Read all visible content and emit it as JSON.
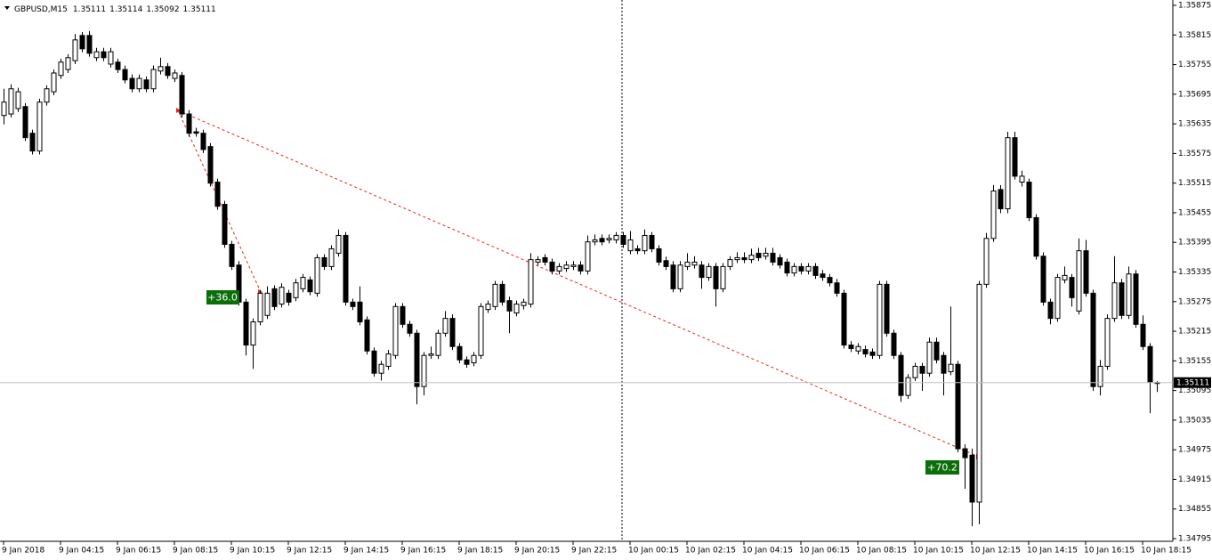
{
  "chart_data": {
    "type": "candlestick",
    "symbol": "GBPUSD,M15",
    "categories": [
      "9 Jan 2018",
      null,
      null,
      null,
      null,
      null,
      null,
      null,
      "9 Jan 04:15",
      null,
      null,
      null,
      null,
      null,
      null,
      null,
      "9 Jan 06:15",
      null,
      null,
      null,
      null,
      null,
      null,
      null,
      "9 Jan 08:15",
      null,
      null,
      null,
      null,
      null,
      null,
      null,
      "9 Jan 10:15",
      null,
      null,
      null,
      null,
      null,
      null,
      null,
      "9 Jan 12:15",
      null,
      null,
      null,
      null,
      null,
      null,
      null,
      "9 Jan 14:15",
      null,
      null,
      null,
      null,
      null,
      null,
      null,
      "9 Jan 16:15",
      null,
      null,
      null,
      null,
      null,
      null,
      null,
      "9 Jan 18:15",
      null,
      null,
      null,
      null,
      null,
      null,
      null,
      "9 Jan 20:15",
      null,
      null,
      null,
      null,
      null,
      null,
      null,
      "9 Jan 22:15",
      null,
      null,
      null,
      null,
      null,
      null,
      null,
      "10 Jan 00:15",
      null,
      null,
      null,
      null,
      null,
      null,
      null,
      "10 Jan 02:15",
      null,
      null,
      null,
      null,
      null,
      null,
      null,
      "10 Jan 04:15",
      null,
      null,
      null,
      null,
      null,
      null,
      null,
      "10 Jan 06:15",
      null,
      null,
      null,
      null,
      null,
      null,
      null,
      "10 Jan 08:15",
      null,
      null,
      null,
      null,
      null,
      null,
      null,
      "10 Jan 10:15",
      null,
      null,
      null,
      null,
      null,
      null,
      null,
      "10 Jan 12:15",
      null,
      null,
      null,
      null,
      null,
      null,
      null,
      "10 Jan 14:15",
      null,
      null,
      null,
      null,
      null,
      null,
      null,
      "10 Jan 16:15",
      null,
      null,
      null,
      null,
      null,
      null,
      null,
      "10 Jan 18:15",
      null,
      null
    ],
    "open": [
      1.35652,
      1.35655,
      1.35666,
      1.3567,
      1.35616,
      1.3558,
      1.35679,
      1.357,
      1.35733,
      1.35745,
      1.35763,
      1.35814,
      1.35814,
      1.35769,
      1.35781,
      1.35756,
      1.3576,
      1.35745,
      1.35727,
      1.35706,
      1.35724,
      1.35706,
      1.35742,
      1.35751,
      1.35727,
      1.35733,
      1.35655,
      1.35619,
      1.35616,
      1.35589,
      1.35517,
      1.35472,
      1.35391,
      1.35349,
      1.35274,
      1.35187,
      1.35234,
      1.35247,
      1.35301,
      1.3527,
      1.35292,
      1.35283,
      1.35301,
      1.35319,
      1.35292,
      1.35364,
      1.35346,
      1.35373,
      1.35409,
      1.35274,
      1.35274,
      1.35238,
      1.35175,
      1.3513,
      1.35144,
      1.35166,
      1.35265,
      1.35229,
      1.35211,
      1.35103,
      1.35166,
      1.35166,
      1.35211,
      1.35241,
      1.35184,
      1.35157,
      1.35151,
      1.35166,
      1.35259,
      1.35265,
      1.3531,
      1.35277,
      1.35252,
      1.35267,
      1.3527,
      1.35355,
      1.35364,
      1.35355,
      1.35337,
      1.35342,
      1.35346,
      1.35349,
      1.35337,
      1.35396,
      1.35403,
      1.354,
      1.354,
      1.35409,
      1.35378,
      1.35382,
      1.35378,
      1.35409,
      1.35382,
      1.35358,
      1.35349,
      1.35301,
      1.35346,
      1.35349,
      1.35349,
      1.35324,
      1.35346,
      1.35301,
      1.35346,
      1.3536,
      1.35364,
      1.3536,
      1.35373,
      1.35367,
      1.35373,
      1.35364,
      1.35355,
      1.35333,
      1.35346,
      1.35337,
      1.35346,
      1.35331,
      1.35324,
      1.35313,
      1.35292,
      1.35187,
      1.35175,
      1.35178,
      1.35173,
      1.35166,
      1.3531,
      1.35211,
      1.35166,
      1.35085,
      1.35121,
      1.35144,
      1.3513,
      1.35193,
      1.35166,
      1.35133,
      1.35148,
      1.34977,
      1.34964,
      1.34869,
      1.3531,
      1.35403,
      1.35502,
      1.35463,
      1.35607,
      1.35517,
      1.35517,
      1.35445,
      1.35367,
      1.35274,
      1.35241,
      1.35319,
      1.35324,
      1.35256,
      1.35378,
      1.35292,
      1.35103,
      1.35144,
      1.35241,
      1.35313,
      1.35247,
      1.35331,
      1.35229,
      1.35184,
      1.35111
    ],
    "high": [
      1.35706,
      1.35715,
      1.35708,
      1.35677,
      1.35623,
      1.35686,
      1.35713,
      1.35745,
      1.35767,
      1.35776,
      1.35817,
      1.35821,
      1.35823,
      1.35789,
      1.35789,
      1.35789,
      1.35767,
      1.35753,
      1.35735,
      1.35735,
      1.35731,
      1.35753,
      1.35769,
      1.35758,
      1.35745,
      1.3574,
      1.35663,
      1.35627,
      1.35623,
      1.35596,
      1.35524,
      1.35479,
      1.35398,
      1.35357,
      1.35281,
      1.35241,
      1.35299,
      1.35306,
      1.35308,
      1.35312,
      1.35299,
      1.35321,
      1.35331,
      1.35326,
      1.35371,
      1.35371,
      1.35389,
      1.35421,
      1.35416,
      1.35281,
      1.35306,
      1.35245,
      1.35182,
      1.35155,
      1.35177,
      1.35272,
      1.35272,
      1.35236,
      1.35218,
      1.35173,
      1.35184,
      1.35218,
      1.35256,
      1.35249,
      1.35191,
      1.35164,
      1.35173,
      1.35272,
      1.35277,
      1.35317,
      1.35317,
      1.35285,
      1.35277,
      1.35281,
      1.35373,
      1.35367,
      1.35371,
      1.35362,
      1.35353,
      1.35357,
      1.35357,
      1.35357,
      1.35409,
      1.35411,
      1.35411,
      1.35411,
      1.35416,
      1.35416,
      1.35418,
      1.35389,
      1.35421,
      1.35416,
      1.35389,
      1.35366,
      1.35357,
      1.35357,
      1.35373,
      1.35367,
      1.35357,
      1.35353,
      1.35353,
      1.35353,
      1.35367,
      1.35375,
      1.35375,
      1.35382,
      1.35384,
      1.35384,
      1.35384,
      1.35371,
      1.35362,
      1.35353,
      1.35353,
      1.35353,
      1.35353,
      1.35339,
      1.35331,
      1.35321,
      1.35299,
      1.35195,
      1.35191,
      1.35186,
      1.3518,
      1.35317,
      1.35317,
      1.35218,
      1.35173,
      1.35128,
      1.35151,
      1.35151,
      1.35202,
      1.35202,
      1.35173,
      1.35265,
      1.35155,
      1.34986,
      1.34977,
      1.35317,
      1.35414,
      1.35511,
      1.35511,
      1.35619,
      1.35619,
      1.3554,
      1.35524,
      1.35452,
      1.35375,
      1.35281,
      1.35331,
      1.35346,
      1.35331,
      1.35403,
      1.354,
      1.35299,
      1.35157,
      1.35249,
      1.35367,
      1.35321,
      1.35346,
      1.35339,
      1.35247,
      1.35191,
      1.35114
    ],
    "low": [
      1.35634,
      1.35648,
      1.35659,
      1.356,
      1.35573,
      1.35573,
      1.35672,
      1.35693,
      1.35726,
      1.35738,
      1.35756,
      1.3578,
      1.35771,
      1.35762,
      1.35762,
      1.35749,
      1.35738,
      1.35717,
      1.35699,
      1.35699,
      1.35699,
      1.35699,
      1.35735,
      1.35726,
      1.3572,
      1.35648,
      1.35609,
      1.35609,
      1.35576,
      1.35508,
      1.35461,
      1.35384,
      1.35339,
      1.35267,
      1.35166,
      1.35139,
      1.35227,
      1.3524,
      1.35258,
      1.35263,
      1.35267,
      1.35276,
      1.35294,
      1.35288,
      1.35285,
      1.35339,
      1.35339,
      1.35366,
      1.35267,
      1.35258,
      1.35227,
      1.35168,
      1.35123,
      1.35115,
      1.35137,
      1.35159,
      1.35222,
      1.35204,
      1.35067,
      1.35085,
      1.35159,
      1.35159,
      1.35204,
      1.35177,
      1.3515,
      1.35141,
      1.35144,
      1.35159,
      1.35252,
      1.35258,
      1.35267,
      1.35211,
      1.35245,
      1.35259,
      1.35263,
      1.35348,
      1.35348,
      1.3533,
      1.3533,
      1.35335,
      1.35339,
      1.3533,
      1.3533,
      1.35389,
      1.35389,
      1.35393,
      1.35393,
      1.35384,
      1.35371,
      1.35371,
      1.35371,
      1.35375,
      1.35348,
      1.35339,
      1.35294,
      1.35294,
      1.35339,
      1.35342,
      1.35301,
      1.35317,
      1.35265,
      1.35294,
      1.35339,
      1.35353,
      1.35353,
      1.35353,
      1.35357,
      1.3536,
      1.35348,
      1.35342,
      1.35326,
      1.35326,
      1.3533,
      1.3533,
      1.35321,
      1.35317,
      1.35306,
      1.35285,
      1.3518,
      1.35173,
      1.35168,
      1.35162,
      1.35159,
      1.35159,
      1.35204,
      1.35159,
      1.35072,
      1.35078,
      1.35114,
      1.35094,
      1.35123,
      1.3515,
      1.35085,
      1.35126,
      1.3497,
      1.34896,
      1.3482,
      1.34824,
      1.35303,
      1.35396,
      1.35454,
      1.35454,
      1.35522,
      1.35508,
      1.35438,
      1.3536,
      1.35267,
      1.35229,
      1.35234,
      1.35312,
      1.35265,
      1.35249,
      1.35285,
      1.35094,
      1.35085,
      1.35137,
      1.35234,
      1.3524,
      1.3524,
      1.35222,
      1.35177,
      1.35049,
      1.35092
    ],
    "close": [
      1.35679,
      1.35706,
      1.357,
      1.35607,
      1.3558,
      1.35679,
      1.35706,
      1.35738,
      1.3576,
      1.35769,
      1.35805,
      1.35787,
      1.35778,
      1.35781,
      1.35769,
      1.35781,
      1.35745,
      1.35724,
      1.35706,
      1.35727,
      1.35706,
      1.35745,
      1.35751,
      1.35733,
      1.35738,
      1.35655,
      1.35616,
      1.35616,
      1.35583,
      1.35515,
      1.35468,
      1.35391,
      1.35346,
      1.35274,
      1.35187,
      1.35234,
      1.35292,
      1.35292,
      1.35265,
      1.35304,
      1.35274,
      1.35313,
      1.35324,
      1.35295,
      1.35364,
      1.35346,
      1.35382,
      1.35409,
      1.35274,
      1.35265,
      1.35234,
      1.35175,
      1.3513,
      1.35148,
      1.35169,
      1.35265,
      1.35229,
      1.35211,
      1.35103,
      1.35166,
      1.35169,
      1.35211,
      1.35241,
      1.35184,
      1.35157,
      1.35148,
      1.35166,
      1.35265,
      1.3527,
      1.3531,
      1.35274,
      1.35256,
      1.3527,
      1.35274,
      1.3536,
      1.3536,
      1.35355,
      1.35337,
      1.35346,
      1.35349,
      1.35349,
      1.35337,
      1.35396,
      1.354,
      1.35396,
      1.35403,
      1.35409,
      1.35391,
      1.354,
      1.35378,
      1.35409,
      1.35382,
      1.35355,
      1.35346,
      1.35301,
      1.35349,
      1.35355,
      1.35355,
      1.35324,
      1.35346,
      1.35301,
      1.35346,
      1.3536,
      1.35364,
      1.3536,
      1.35369,
      1.35364,
      1.35373,
      1.35355,
      1.35349,
      1.35333,
      1.35346,
      1.35337,
      1.35346,
      1.35328,
      1.35324,
      1.35313,
      1.35292,
      1.35187,
      1.3518,
      1.35184,
      1.35169,
      1.35166,
      1.3531,
      1.35211,
      1.35166,
      1.35085,
      1.35121,
      1.35144,
      1.3513,
      1.35193,
      1.35157,
      1.3513,
      1.35148,
      1.34977,
      1.34959,
      1.34869,
      1.3531,
      1.35403,
      1.35499,
      1.35463,
      1.35607,
      1.35529,
      1.35529,
      1.35445,
      1.35367,
      1.35274,
      1.35241,
      1.35324,
      1.35328,
      1.35283,
      1.35378,
      1.35292,
      1.35103,
      1.35144,
      1.35241,
      1.35313,
      1.35247,
      1.35331,
      1.35229,
      1.35184,
      1.35112,
      1.35111
    ],
    "ylim": [
      1.34795,
      1.35875
    ],
    "yticks": [
      1.35875,
      1.35815,
      1.35755,
      1.35695,
      1.35635,
      1.35575,
      1.35515,
      1.35455,
      1.35395,
      1.35335,
      1.35275,
      1.35215,
      1.35155,
      1.35095,
      1.35035,
      1.34975,
      1.34915,
      1.34855,
      1.34795
    ],
    "up_color": "#ffffff",
    "down_color": "#000000",
    "grid": false,
    "annotations": [
      "+36.0",
      "+70.2"
    ]
  }
}
